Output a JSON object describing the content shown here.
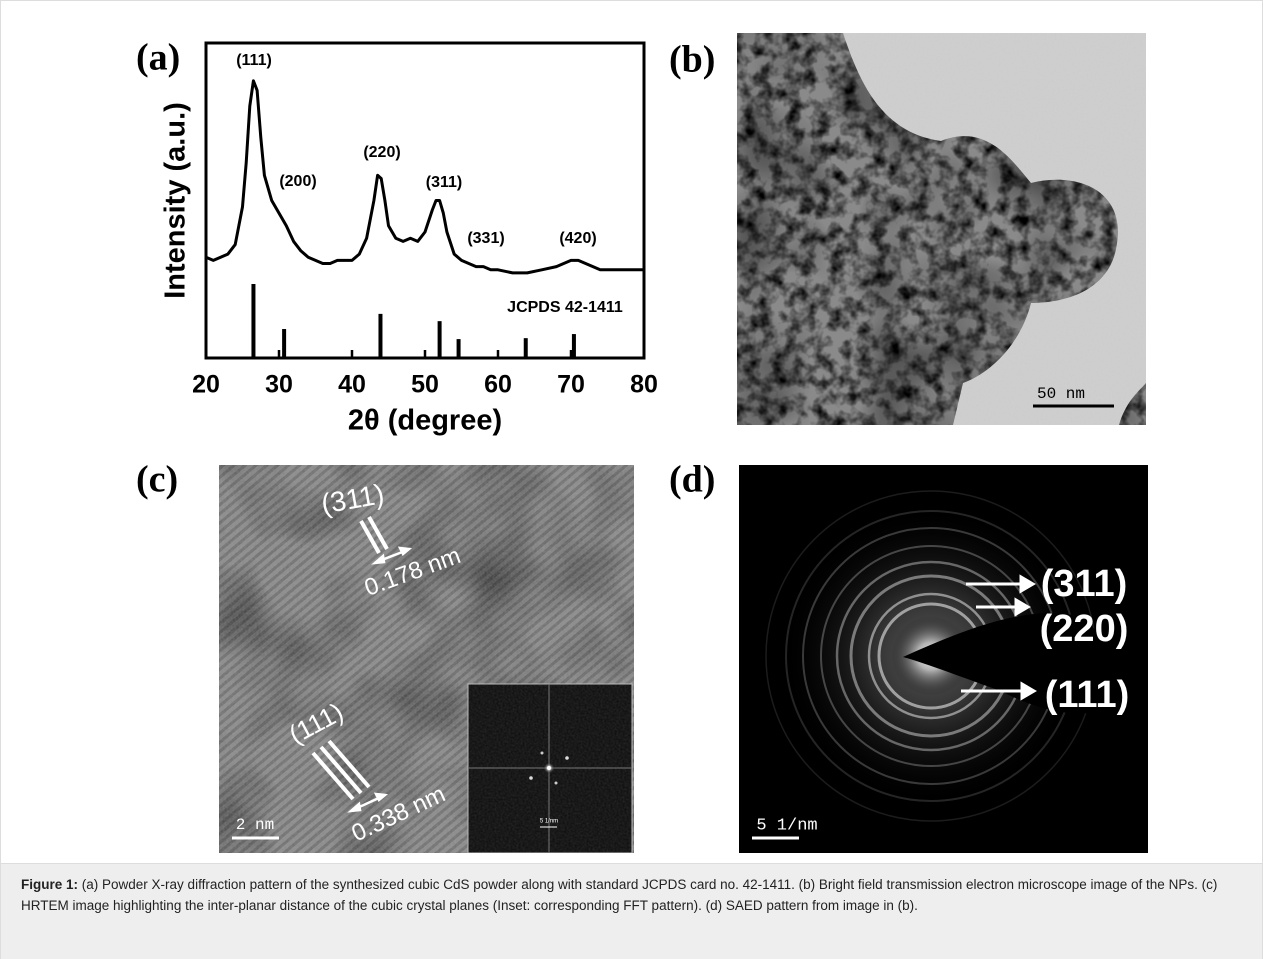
{
  "chart_data": {
    "type": "line",
    "xlabel": "2θ (degree)",
    "ylabel": "Intensity (a.u.)",
    "x": [
      20,
      21,
      22,
      23,
      24,
      25,
      25.5,
      26,
      26.5,
      27,
      27.5,
      28,
      29,
      30,
      31,
      32,
      33,
      34,
      35,
      36,
      37,
      38,
      39,
      40,
      41,
      42,
      43,
      43.5,
      44,
      44.5,
      45,
      46,
      47,
      48,
      49,
      50,
      51,
      51.5,
      52,
      52.5,
      53,
      54,
      55,
      56,
      57,
      58,
      59,
      60,
      62,
      64,
      66,
      68,
      69,
      70,
      71,
      72,
      74,
      76,
      78,
      80
    ],
    "values": [
      32,
      31,
      32,
      33,
      36,
      48,
      62,
      80,
      88,
      85,
      70,
      58,
      50,
      46,
      42,
      37,
      34,
      32,
      31,
      30,
      30,
      31,
      31,
      31,
      33,
      38,
      50,
      58,
      57,
      50,
      42,
      38,
      37,
      38,
      37,
      40,
      47,
      50,
      50,
      46,
      40,
      33,
      31,
      30,
      29,
      29,
      28,
      28,
      27,
      27,
      28,
      29,
      30,
      31,
      31,
      30,
      28,
      28,
      28,
      28
    ],
    "color": "#000000",
    "xlim": [
      20,
      80
    ],
    "ylim": [
      0,
      100
    ],
    "xticks": [
      20,
      30,
      40,
      50,
      60,
      70,
      80
    ],
    "annotations": [
      "(111)",
      "(200)",
      "(220)",
      "(311)",
      "(331)",
      "(420)"
    ],
    "reference": {
      "label": "JCPDS 42-1411",
      "x": [
        26.5,
        30.7,
        43.9,
        52.0,
        54.6,
        63.8,
        70.4
      ],
      "values": [
        23.5,
        9.2,
        14,
        11.7,
        6,
        6.3,
        7.6
      ]
    }
  },
  "panels": {
    "a": {
      "label": "(a)"
    },
    "b": {
      "label": "(b)",
      "scale_bar": "50 nm"
    },
    "c": {
      "label": "(c)",
      "annotations": [
        "(311)",
        "0.178 nm",
        "(111)",
        "0.338 nm"
      ],
      "scale_bar": "2 nm",
      "inset_scale_bar": "5 1/nm"
    },
    "d": {
      "label": "(d)",
      "annotations": [
        "(311)",
        "(220)",
        "(111)"
      ],
      "scale_bar": "5 1/nm"
    }
  },
  "caption": {
    "label": "Figure 1:",
    "text": "(a) Powder X-ray diffraction pattern of the synthesized cubic CdS powder along with standard JCPDS card no. 42-1411. (b) Bright field transmission electron microscope image of the NPs. (c) HRTEM image highlighting the inter-planar distance of the cubic crystal planes (Inset: corresponding FFT pattern). (d) SAED pattern from image in (b)."
  }
}
